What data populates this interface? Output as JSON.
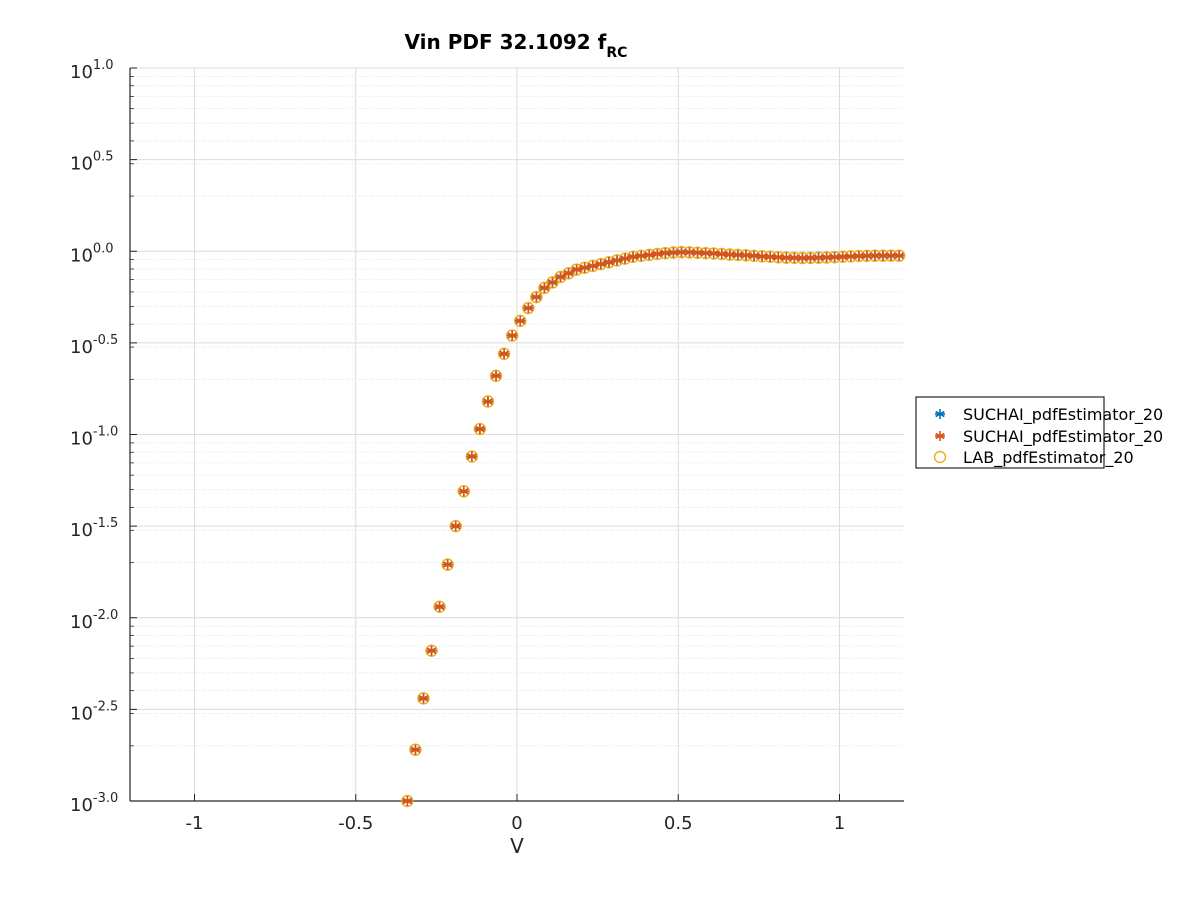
{
  "chart_data": {
    "type": "scatter",
    "title": "Vin PDF 32.1092 f",
    "title_subscript": "RC",
    "xlabel": "V",
    "ylabel": "",
    "xlim": [
      -1.2,
      1.2
    ],
    "ylim_log10": [
      -3.0,
      1.0
    ],
    "yscale": "log",
    "grid": true,
    "minor_grid": true,
    "legend_position": "outside-right",
    "x_ticks": [
      -1,
      -0.5,
      0,
      0.5,
      1
    ],
    "x_tick_labels": [
      "-1",
      "-0.5",
      "0",
      "0.5",
      "1"
    ],
    "y_ticks_log10": [
      -3.0,
      -2.5,
      -2.0,
      -1.5,
      -1.0,
      -0.5,
      0.0,
      0.5,
      1.0
    ],
    "y_tick_base": "10",
    "y_tick_exponents": [
      "-3.0",
      "-2.5",
      "-2.0",
      "-1.5",
      "-1.0",
      "-0.5",
      "0.0",
      "0.5",
      "1.0"
    ],
    "x": [
      -0.34,
      -0.315,
      -0.29,
      -0.265,
      -0.24,
      -0.215,
      -0.19,
      -0.165,
      -0.14,
      -0.115,
      -0.09,
      -0.065,
      -0.04,
      -0.015,
      0.01,
      0.035,
      0.06,
      0.085,
      0.11,
      0.135,
      0.16,
      0.185,
      0.21,
      0.235,
      0.26,
      0.285,
      0.31,
      0.335,
      0.36,
      0.385,
      0.41,
      0.435,
      0.46,
      0.485,
      0.51,
      0.535,
      0.56,
      0.585,
      0.61,
      0.635,
      0.66,
      0.685,
      0.71,
      0.735,
      0.76,
      0.785,
      0.81,
      0.835,
      0.86,
      0.885,
      0.91,
      0.935,
      0.96,
      0.985,
      1.01,
      1.035,
      1.06,
      1.085,
      1.11,
      1.135,
      1.16,
      1.185
    ],
    "y_log10": [
      -3.0,
      -2.72,
      -2.44,
      -2.18,
      -1.94,
      -1.71,
      -1.5,
      -1.31,
      -1.12,
      -0.97,
      -0.82,
      -0.68,
      -0.56,
      -0.46,
      -0.38,
      -0.31,
      -0.25,
      -0.2,
      -0.17,
      -0.14,
      -0.12,
      -0.1,
      -0.09,
      -0.08,
      -0.07,
      -0.06,
      -0.05,
      -0.04,
      -0.03,
      -0.025,
      -0.02,
      -0.015,
      -0.01,
      -0.007,
      -0.005,
      -0.006,
      -0.008,
      -0.01,
      -0.012,
      -0.015,
      -0.018,
      -0.02,
      -0.022,
      -0.025,
      -0.028,
      -0.03,
      -0.033,
      -0.035,
      -0.036,
      -0.037,
      -0.036,
      -0.035,
      -0.034,
      -0.032,
      -0.03,
      -0.028,
      -0.026,
      -0.025,
      -0.024,
      -0.024,
      -0.024,
      -0.024
    ],
    "series": [
      {
        "name": "SUCHAI_pdfEstimator_20",
        "marker": "asterisk",
        "color": "#0072BD"
      },
      {
        "name": "SUCHAI_pdfEstimator_20",
        "marker": "asterisk",
        "color": "#D95319"
      },
      {
        "name": "LAB_pdfEstimator_20",
        "marker": "circle",
        "color": "#EDB120"
      }
    ]
  }
}
